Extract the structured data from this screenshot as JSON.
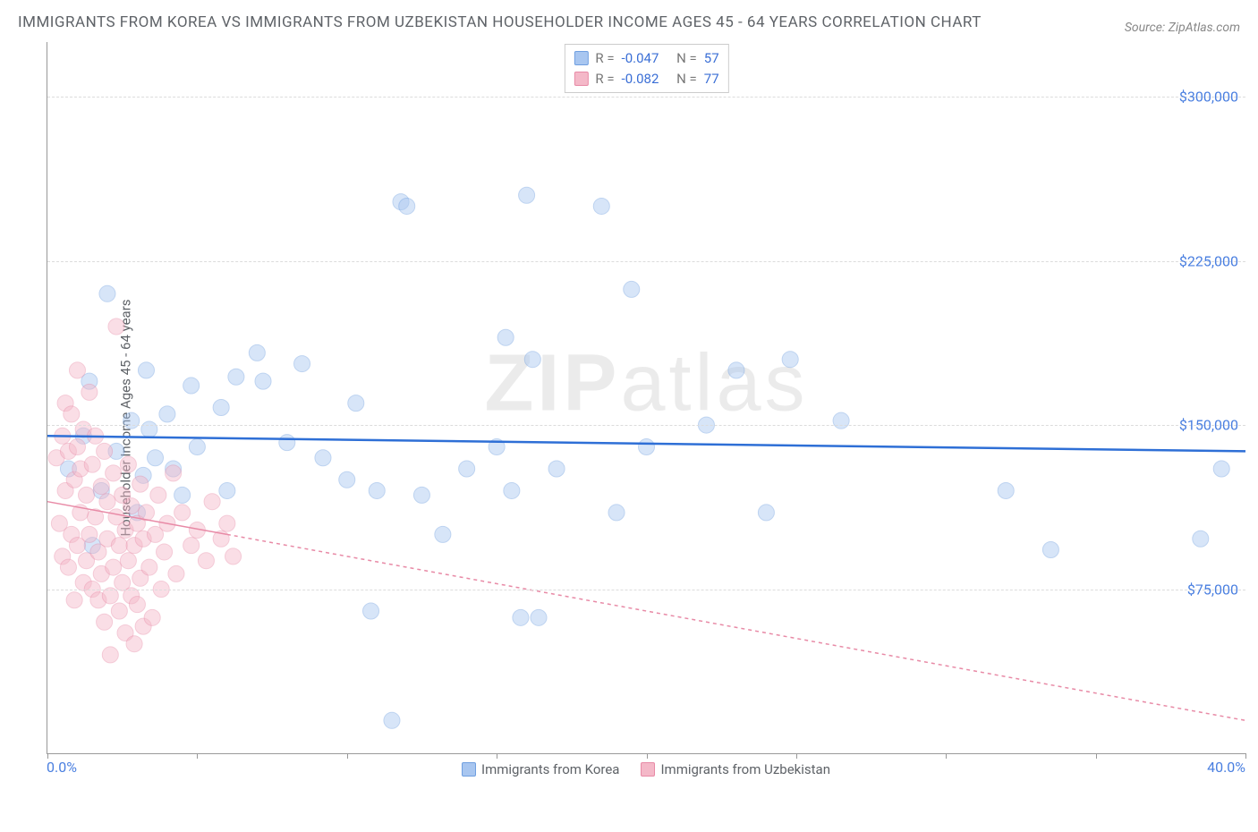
{
  "title": "IMMIGRANTS FROM KOREA VS IMMIGRANTS FROM UZBEKISTAN HOUSEHOLDER INCOME AGES 45 - 64 YEARS CORRELATION CHART",
  "source": "Source: ZipAtlas.com",
  "watermark_a": "ZIP",
  "watermark_b": "atlas",
  "y_axis_label": "Householder Income Ages 45 - 64 years",
  "chart": {
    "type": "scatter",
    "xlim": [
      0,
      40
    ],
    "ylim": [
      0,
      325000
    ],
    "x_ticks": [
      0,
      5,
      10,
      15,
      20,
      25,
      30,
      35,
      40
    ],
    "x_tick_labels": {
      "0": "0.0%",
      "40": "40.0%"
    },
    "y_ticks": [
      75000,
      150000,
      225000,
      300000
    ],
    "y_tick_labels": [
      "$75,000",
      "$150,000",
      "$225,000",
      "$300,000"
    ],
    "grid_color": "#dcdcdc",
    "background_color": "#ffffff",
    "marker_radius": 9,
    "marker_opacity": 0.45,
    "series": [
      {
        "name": "Immigrants from Korea",
        "color_fill": "#a8c6f0",
        "color_stroke": "#6f9fe0",
        "correlation_R": "-0.047",
        "correlation_N": "57",
        "trend": {
          "y_at_xmin": 145000,
          "y_at_xmax": 138000,
          "color": "#2e6fd6",
          "width": 2.5,
          "dash": "none"
        },
        "points": [
          [
            0.7,
            130000
          ],
          [
            1.2,
            145000
          ],
          [
            1.4,
            170000
          ],
          [
            1.5,
            95000
          ],
          [
            1.8,
            120000
          ],
          [
            2.0,
            210000
          ],
          [
            2.3,
            138000
          ],
          [
            2.8,
            152000
          ],
          [
            3.0,
            110000
          ],
          [
            3.2,
            127000
          ],
          [
            3.3,
            175000
          ],
          [
            3.4,
            148000
          ],
          [
            3.6,
            135000
          ],
          [
            4.0,
            155000
          ],
          [
            4.2,
            130000
          ],
          [
            4.5,
            118000
          ],
          [
            4.8,
            168000
          ],
          [
            5.0,
            140000
          ],
          [
            5.8,
            158000
          ],
          [
            6.0,
            120000
          ],
          [
            6.3,
            172000
          ],
          [
            7.0,
            183000
          ],
          [
            7.2,
            170000
          ],
          [
            8.0,
            142000
          ],
          [
            8.5,
            178000
          ],
          [
            9.2,
            135000
          ],
          [
            10.0,
            125000
          ],
          [
            10.3,
            160000
          ],
          [
            10.8,
            65000
          ],
          [
            11.0,
            120000
          ],
          [
            11.5,
            15000
          ],
          [
            11.8,
            252000
          ],
          [
            12.0,
            250000
          ],
          [
            12.5,
            118000
          ],
          [
            13.2,
            100000
          ],
          [
            14.0,
            130000
          ],
          [
            15.0,
            140000
          ],
          [
            15.3,
            190000
          ],
          [
            15.5,
            120000
          ],
          [
            15.8,
            62000
          ],
          [
            16.0,
            255000
          ],
          [
            16.2,
            180000
          ],
          [
            16.4,
            62000
          ],
          [
            17.0,
            130000
          ],
          [
            18.5,
            250000
          ],
          [
            19.0,
            110000
          ],
          [
            19.5,
            212000
          ],
          [
            20.0,
            140000
          ],
          [
            22.0,
            150000
          ],
          [
            23.0,
            175000
          ],
          [
            24.0,
            110000
          ],
          [
            24.8,
            180000
          ],
          [
            26.5,
            152000
          ],
          [
            32.0,
            120000
          ],
          [
            33.5,
            93000
          ],
          [
            38.5,
            98000
          ],
          [
            39.2,
            130000
          ]
        ]
      },
      {
        "name": "Immigrants from Uzbekistan",
        "color_fill": "#f4b8c8",
        "color_stroke": "#e88aa6",
        "correlation_R": "-0.082",
        "correlation_N": "77",
        "trend": {
          "y_at_xmin": 115000,
          "y_at_xmax": 15000,
          "color": "#e88aa6",
          "width": 1.5,
          "dash": "4,4",
          "solid_until_x": 6
        },
        "points": [
          [
            0.3,
            135000
          ],
          [
            0.4,
            105000
          ],
          [
            0.5,
            145000
          ],
          [
            0.5,
            90000
          ],
          [
            0.6,
            120000
          ],
          [
            0.6,
            160000
          ],
          [
            0.7,
            85000
          ],
          [
            0.7,
            138000
          ],
          [
            0.8,
            155000
          ],
          [
            0.8,
            100000
          ],
          [
            0.9,
            125000
          ],
          [
            0.9,
            70000
          ],
          [
            1.0,
            140000
          ],
          [
            1.0,
            175000
          ],
          [
            1.0,
            95000
          ],
          [
            1.1,
            110000
          ],
          [
            1.1,
            130000
          ],
          [
            1.2,
            78000
          ],
          [
            1.2,
            148000
          ],
          [
            1.3,
            118000
          ],
          [
            1.3,
            88000
          ],
          [
            1.4,
            165000
          ],
          [
            1.4,
            100000
          ],
          [
            1.5,
            132000
          ],
          [
            1.5,
            75000
          ],
          [
            1.6,
            108000
          ],
          [
            1.6,
            145000
          ],
          [
            1.7,
            92000
          ],
          [
            1.7,
            70000
          ],
          [
            1.8,
            122000
          ],
          [
            1.8,
            82000
          ],
          [
            1.9,
            138000
          ],
          [
            1.9,
            60000
          ],
          [
            2.0,
            115000
          ],
          [
            2.0,
            98000
          ],
          [
            2.1,
            72000
          ],
          [
            2.1,
            45000
          ],
          [
            2.2,
            128000
          ],
          [
            2.2,
            85000
          ],
          [
            2.3,
            108000
          ],
          [
            2.3,
            195000
          ],
          [
            2.4,
            95000
          ],
          [
            2.4,
            65000
          ],
          [
            2.5,
            78000
          ],
          [
            2.5,
            118000
          ],
          [
            2.6,
            102000
          ],
          [
            2.6,
            55000
          ],
          [
            2.7,
            88000
          ],
          [
            2.7,
            132000
          ],
          [
            2.8,
            72000
          ],
          [
            2.8,
            113000
          ],
          [
            2.9,
            95000
          ],
          [
            2.9,
            50000
          ],
          [
            3.0,
            105000
          ],
          [
            3.0,
            68000
          ],
          [
            3.1,
            123000
          ],
          [
            3.1,
            80000
          ],
          [
            3.2,
            98000
          ],
          [
            3.2,
            58000
          ],
          [
            3.3,
            110000
          ],
          [
            3.4,
            85000
          ],
          [
            3.5,
            62000
          ],
          [
            3.6,
            100000
          ],
          [
            3.7,
            118000
          ],
          [
            3.8,
            75000
          ],
          [
            3.9,
            92000
          ],
          [
            4.0,
            105000
          ],
          [
            4.2,
            128000
          ],
          [
            4.3,
            82000
          ],
          [
            4.5,
            110000
          ],
          [
            4.8,
            95000
          ],
          [
            5.0,
            102000
          ],
          [
            5.3,
            88000
          ],
          [
            5.5,
            115000
          ],
          [
            5.8,
            98000
          ],
          [
            6.0,
            105000
          ],
          [
            6.2,
            90000
          ]
        ]
      }
    ],
    "legend_bottom": [
      {
        "label": "Immigrants from Korea"
      },
      {
        "label": "Immigrants from Uzbekistan"
      }
    ]
  }
}
